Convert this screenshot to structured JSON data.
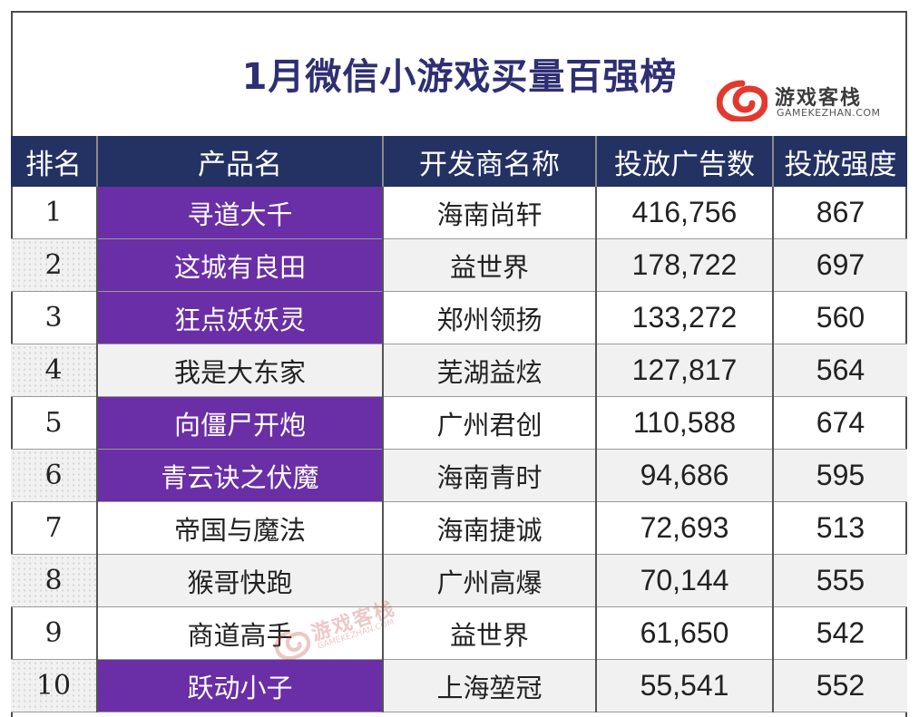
{
  "title": "1月微信小游戏买量百强榜",
  "brand": {
    "name": "游戏客栈",
    "domain": "GAMEKEZHAN.COM",
    "color": "#e2392e"
  },
  "colors": {
    "header_bg": "#243163",
    "highlight": "#6a2ea6",
    "title": "#2e2f73"
  },
  "table": {
    "headers": [
      "排名",
      "产品名",
      "开发商名称",
      "投放广告数",
      "投放强度"
    ],
    "rows": [
      {
        "rank": "1",
        "product": "寻道大千",
        "developer": "海南尚轩",
        "ads": "416,756",
        "intensity": "867",
        "highlighted": true
      },
      {
        "rank": "2",
        "product": "这城有良田",
        "developer": "益世界",
        "ads": "178,722",
        "intensity": "697",
        "highlighted": true
      },
      {
        "rank": "3",
        "product": "狂点妖妖灵",
        "developer": "郑州领扬",
        "ads": "133,272",
        "intensity": "560",
        "highlighted": true
      },
      {
        "rank": "4",
        "product": "我是大东家",
        "developer": "芜湖益炫",
        "ads": "127,817",
        "intensity": "564",
        "highlighted": false
      },
      {
        "rank": "5",
        "product": "向僵尸开炮",
        "developer": "广州君创",
        "ads": "110,588",
        "intensity": "674",
        "highlighted": true
      },
      {
        "rank": "6",
        "product": "青云诀之伏魔",
        "developer": "海南青时",
        "ads": "94,686",
        "intensity": "595",
        "highlighted": true
      },
      {
        "rank": "7",
        "product": "帝国与魔法",
        "developer": "海南捷诚",
        "ads": "72,693",
        "intensity": "513",
        "highlighted": false
      },
      {
        "rank": "8",
        "product": "猴哥快跑",
        "developer": "广州高爆",
        "ads": "70,144",
        "intensity": "555",
        "highlighted": false
      },
      {
        "rank": "9",
        "product": "商道高手",
        "developer": "益世界",
        "ads": "61,650",
        "intensity": "542",
        "highlighted": false
      },
      {
        "rank": "10",
        "product": "跃动小子",
        "developer": "上海堃冠",
        "ads": "55,541",
        "intensity": "552",
        "highlighted": true
      }
    ]
  }
}
